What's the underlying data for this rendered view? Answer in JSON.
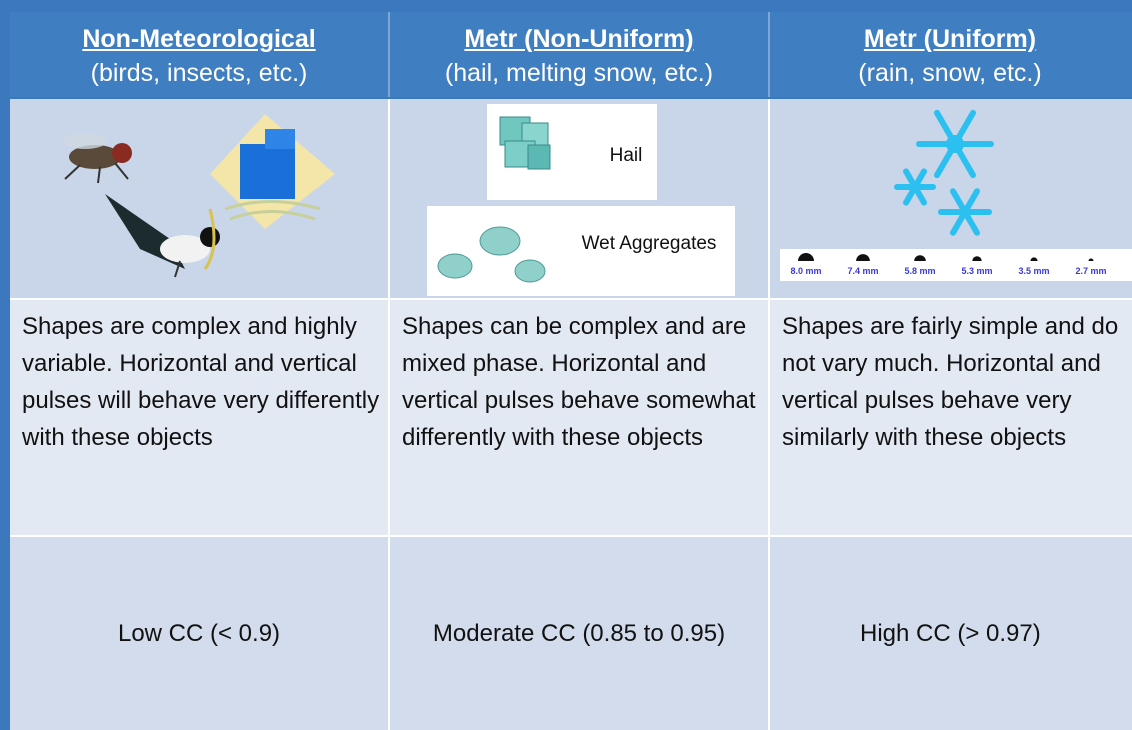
{
  "table": {
    "columns": [
      {
        "title": "Non-Meteorological",
        "subtitle": "(birds, insects, etc.)",
        "description": "Shapes are complex and highly variable.  Horizontal and vertical pulses will behave very differently with these objects",
        "correlation": "Low CC (< 0.9)"
      },
      {
        "title": "Metr (Non-Uniform)",
        "subtitle": "(hail, melting snow, etc.)",
        "description": "Shapes can be complex and are mixed phase. Horizontal and vertical pulses behave somewhat differently with these objects",
        "correlation": "Moderate CC (0.85 to 0.95)"
      },
      {
        "title": "Metr (Uniform)",
        "subtitle": "(rain, snow, etc.)",
        "description": "Shapes are fairly simple and do not vary much. Horizontal and vertical pulses behave very similarly with these objects",
        "correlation": "High CC (> 0.97)"
      }
    ],
    "images": {
      "hail": "Hail",
      "wet_aggregates": "Wet Aggregates",
      "drop_sizes": [
        "8.0 mm",
        "7.4 mm",
        "5.8 mm",
        "5.3 mm",
        "3.5 mm",
        "2.7 mm"
      ]
    }
  }
}
